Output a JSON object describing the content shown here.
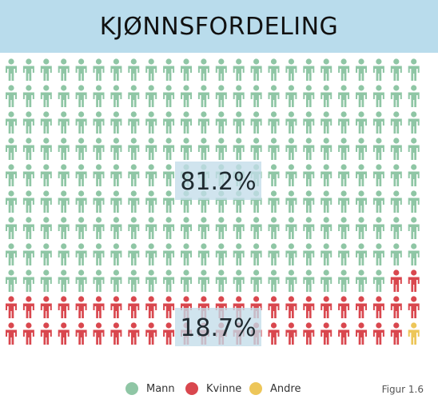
{
  "title": "KJØNNSFORDELING",
  "figure_label": "Figur 1.6",
  "colors": {
    "mann": "#8fc6a5",
    "kvinne": "#d9474e",
    "andre": "#edc659",
    "title_bg": "#b9dcec"
  },
  "chart_data": {
    "type": "pictogram",
    "rows": 11,
    "cols": 24,
    "total_icons": 264,
    "series": [
      {
        "name": "Mann",
        "icons": 214,
        "color": "#8fc6a5"
      },
      {
        "name": "Kvinne",
        "icons": 49,
        "color": "#d9474e"
      },
      {
        "name": "Andre",
        "icons": 1,
        "color": "#edc659"
      }
    ],
    "labels": [
      {
        "text": "81.2%",
        "series": "Mann"
      },
      {
        "text": "18.7%",
        "series": "Kvinne"
      }
    ],
    "legend": {
      "position": "bottom",
      "items": [
        {
          "label": "Mann",
          "color": "#8fc6a5"
        },
        {
          "label": "Kvinne",
          "color": "#d9474e"
        },
        {
          "label": "Andre",
          "color": "#edc659"
        }
      ]
    }
  }
}
